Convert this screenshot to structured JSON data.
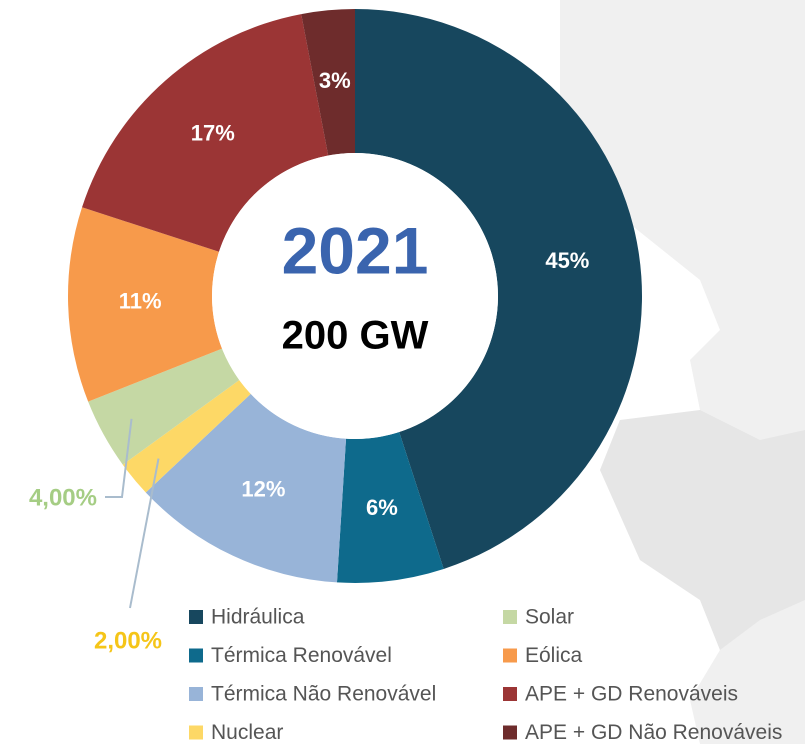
{
  "chart_data": {
    "type": "donut",
    "title": "2021",
    "subtitle": "200 GW",
    "categories": [
      "Hidráulica",
      "Térmica Renovável",
      "Térmica Não Renovável",
      "Nuclear",
      "Solar",
      "Eólica",
      "APE + GD Renováveis",
      "APE + GD Não Renováveis"
    ],
    "values": [
      45,
      6,
      12,
      2,
      4,
      11,
      17,
      3
    ],
    "value_labels": [
      "45%",
      "6%",
      "12%",
      "2,00%",
      "4,00%",
      "11%",
      "17%",
      "3%"
    ],
    "colors": [
      "#17475e",
      "#0e6a8c",
      "#98b4d8",
      "#fdd866",
      "#c5d8a4",
      "#f79a4b",
      "#9b3535",
      "#6e2c2c"
    ]
  }
}
